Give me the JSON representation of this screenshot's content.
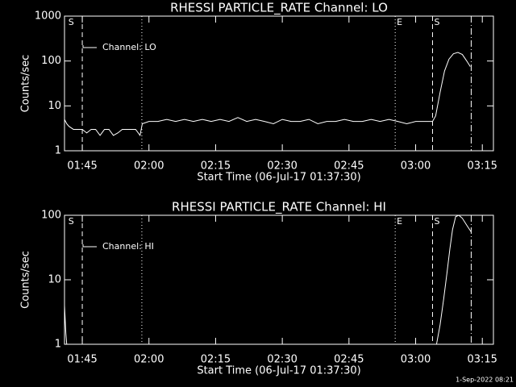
{
  "chart_data": [
    {
      "type": "line",
      "title": "RHESSI PARTICLE_RATE Channel: LO",
      "xlabel": "Start Time (06-Jul-17 01:37:30)",
      "ylabel": "Counts/sec",
      "log_y": true,
      "xlim": [
        101,
        197.5
      ],
      "ylim": [
        1,
        1000
      ],
      "yticks": [
        1,
        10,
        100,
        1000
      ],
      "xticks": [
        {
          "value": 105,
          "label": "01:45"
        },
        {
          "value": 120,
          "label": "02:00"
        },
        {
          "value": 135,
          "label": "02:15"
        },
        {
          "value": 150,
          "label": "02:30"
        },
        {
          "value": 165,
          "label": "02:45"
        },
        {
          "value": 180,
          "label": "03:00"
        },
        {
          "value": 195,
          "label": "03:15"
        }
      ],
      "x": [
        101,
        101.5,
        102,
        103,
        104,
        105,
        106,
        107,
        108,
        109,
        110,
        111,
        112,
        113,
        114,
        115,
        116,
        117,
        118,
        118.5,
        120,
        122,
        124,
        126,
        128,
        130,
        132,
        134,
        136,
        138,
        140,
        142,
        144,
        146,
        148,
        150,
        152,
        154,
        156,
        158,
        160,
        162,
        164,
        166,
        168,
        170,
        172,
        174,
        176,
        178,
        180,
        182,
        183.8,
        184.5,
        185.5,
        186.5,
        187.5,
        188.5,
        189.5,
        190.5,
        191.5,
        192.3
      ],
      "series": [
        {
          "name": "Channel: LO",
          "color": "#ffffff",
          "values": [
            5,
            4,
            3.5,
            3,
            3,
            3,
            2.5,
            3,
            3,
            2.2,
            3,
            3,
            2.2,
            2.5,
            3,
            3,
            3,
            3,
            2.2,
            4,
            4.5,
            4.5,
            5,
            4.5,
            5,
            4.5,
            5,
            4.5,
            5,
            4.5,
            5.5,
            4.5,
            5,
            4.5,
            4,
            5,
            4.5,
            4.5,
            5,
            4,
            4.5,
            4.5,
            5,
            4.5,
            4.5,
            5,
            4.5,
            5,
            4.5,
            4,
            4.5,
            4.5,
            4.5,
            6,
            20,
            60,
            110,
            145,
            155,
            140,
            100,
            75
          ]
        }
      ],
      "markers": [
        {
          "x": 101.5,
          "label": "S"
        },
        {
          "x": 105,
          "style": "dashed"
        },
        {
          "x": 118.4,
          "style": "dotted"
        },
        {
          "x": 175.4,
          "style": "dotted",
          "label": "E"
        },
        {
          "x": 183.8,
          "style": "dashed",
          "label": "S"
        },
        {
          "x": 192.5,
          "style": "dashdot"
        }
      ]
    },
    {
      "type": "line",
      "title": "RHESSI PARTICLE_RATE Channel: HI",
      "xlabel": "Start Time (06-Jul-17 01:37:30)",
      "ylabel": "Counts/sec",
      "log_y": true,
      "xlim": [
        101,
        197.5
      ],
      "ylim": [
        1,
        100
      ],
      "yticks": [
        1,
        10,
        100
      ],
      "xticks": [
        {
          "value": 105,
          "label": "01:45"
        },
        {
          "value": 120,
          "label": "02:00"
        },
        {
          "value": 135,
          "label": "02:15"
        },
        {
          "value": 150,
          "label": "02:30"
        },
        {
          "value": 165,
          "label": "02:45"
        },
        {
          "value": 180,
          "label": "03:00"
        },
        {
          "value": 195,
          "label": "03:15"
        }
      ],
      "x": [
        101,
        101.3,
        101.5,
        184.7,
        185.5,
        186.3,
        187,
        187.7,
        188.3,
        189,
        189.7,
        190.5,
        191.5,
        192.5
      ],
      "series": [
        {
          "name": "Channel: HI",
          "color": "#ffffff",
          "values": [
            4,
            1.5,
            1,
            1,
            2,
            5,
            12,
            30,
            60,
            95,
            100,
            90,
            70,
            55
          ]
        }
      ],
      "markers": [
        {
          "x": 101.5,
          "label": "S"
        },
        {
          "x": 105,
          "style": "dashed"
        },
        {
          "x": 118.4,
          "style": "dotted"
        },
        {
          "x": 175.4,
          "style": "dotted",
          "label": "E"
        },
        {
          "x": 183.8,
          "style": "dashed",
          "label": "S"
        },
        {
          "x": 192.5,
          "style": "dashdot"
        }
      ]
    }
  ],
  "footer": "1-Sep-2022 08:21"
}
